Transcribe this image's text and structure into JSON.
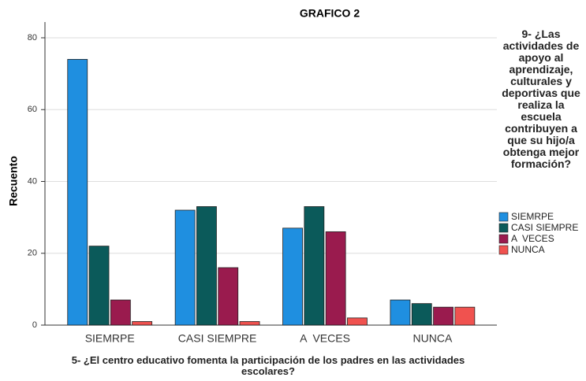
{
  "chart_data": {
    "type": "bar",
    "title": "GRAFICO 2",
    "x_label": "5- ¿El centro educativo fomenta la participación de los padres en las actividades escolares?",
    "y_label": "Recuento",
    "legend_title": "9- ¿Las actividades de apoyo al aprendizaje, culturales y deportivas que realiza la escuela contribuyen a que su hijo/a obtenga mejor formación?",
    "categories": [
      "SIEMRPE",
      "CASI SIEMPRE",
      "A  VECES",
      "NUNCA"
    ],
    "series": [
      {
        "name": "SIEMRPE",
        "color": "#1f8fe0",
        "values": [
          74,
          32,
          27,
          7
        ]
      },
      {
        "name": "CASI SIEMPRE",
        "color": "#0b5a5a",
        "values": [
          22,
          33,
          33,
          6
        ]
      },
      {
        "name": "A  VECES",
        "color": "#9a1b4e",
        "values": [
          7,
          16,
          26,
          5
        ]
      },
      {
        "name": "NUNCA",
        "color": "#f0524f",
        "values": [
          1,
          1,
          2,
          5
        ]
      }
    ],
    "ylim": [
      0,
      80
    ],
    "yticks": [
      0,
      20,
      40,
      60,
      80
    ],
    "grid": true,
    "legend": "right"
  }
}
